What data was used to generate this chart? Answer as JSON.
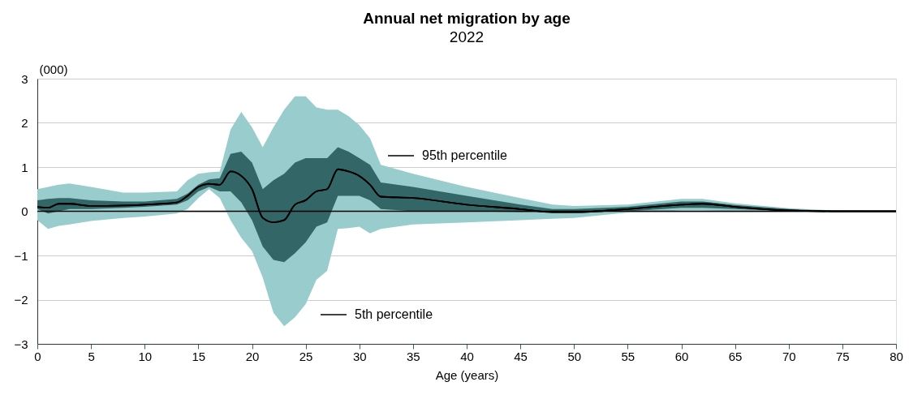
{
  "chart_data": {
    "type": "line",
    "title": "Annual net migration by age",
    "subtitle": "2022",
    "xlabel": "Age (years)",
    "ylabel": "(000)",
    "x": [
      0,
      1,
      2,
      3,
      5,
      8,
      10,
      13,
      14,
      15,
      16,
      17,
      18,
      19,
      20,
      21,
      22,
      23,
      24,
      25,
      26,
      27,
      28,
      29,
      30,
      31,
      32,
      35,
      40,
      45,
      48,
      50,
      55,
      60,
      62,
      65,
      70,
      74,
      80
    ],
    "series": [
      {
        "type": "line",
        "color": "#000000",
        "values": [
          0.1,
          0.08,
          0.17,
          0.17,
          0.12,
          0.13,
          0.15,
          0.2,
          0.35,
          0.55,
          0.62,
          0.6,
          0.9,
          0.8,
          0.5,
          -0.15,
          -0.25,
          -0.2,
          0.15,
          0.25,
          0.45,
          0.5,
          0.95,
          0.9,
          0.8,
          0.6,
          0.33,
          0.3,
          0.15,
          0.05,
          -0.02,
          -0.02,
          0.05,
          0.15,
          0.17,
          0.1,
          0.02,
          0,
          0
        ],
        "upper": [
          0.5,
          0.55,
          0.6,
          0.63,
          0.55,
          0.42,
          0.42,
          0.45,
          0.7,
          0.85,
          0.88,
          0.9,
          1.85,
          2.25,
          1.9,
          1.45,
          1.9,
          2.3,
          2.6,
          2.6,
          2.35,
          2.3,
          2.3,
          2.15,
          1.95,
          1.65,
          1.05,
          0.85,
          0.55,
          0.3,
          0.15,
          0.12,
          0.15,
          0.28,
          0.28,
          0.18,
          0.07,
          0.02,
          0
        ],
        "lower": [
          -0.2,
          -0.4,
          -0.33,
          -0.3,
          -0.22,
          -0.15,
          -0.12,
          -0.05,
          0.05,
          0.3,
          0.5,
          0.3,
          -0.2,
          -0.6,
          -0.9,
          -1.5,
          -2.3,
          -2.6,
          -2.4,
          -2.1,
          -1.55,
          -1.35,
          -0.4,
          -0.38,
          -0.35,
          -0.5,
          -0.4,
          -0.3,
          -0.25,
          -0.2,
          -0.17,
          -0.15,
          -0.03,
          0.02,
          0.02,
          0,
          0,
          0,
          0
        ]
      },
      {
        "type": "line",
        "color": "#000000",
        "values": [
          0.1,
          0.08,
          0.17,
          0.17,
          0.12,
          0.13,
          0.15,
          0.2,
          0.35,
          0.55,
          0.62,
          0.6,
          0.9,
          0.8,
          0.5,
          -0.15,
          -0.25,
          -0.2,
          0.15,
          0.25,
          0.45,
          0.5,
          0.95,
          0.9,
          0.8,
          0.6,
          0.33,
          0.3,
          0.15,
          0.05,
          -0.02,
          -0.02,
          0.05,
          0.15,
          0.17,
          0.1,
          0.02,
          0,
          0
        ],
        "upper": [
          0.25,
          0.28,
          0.3,
          0.3,
          0.25,
          0.22,
          0.22,
          0.28,
          0.4,
          0.6,
          0.72,
          0.75,
          1.3,
          1.35,
          1.1,
          0.5,
          0.7,
          0.85,
          1.1,
          1.2,
          1.2,
          1.2,
          1.45,
          1.35,
          1.2,
          1.05,
          0.65,
          0.55,
          0.35,
          0.15,
          0.05,
          0.05,
          0.1,
          0.22,
          0.22,
          0.14,
          0.05,
          0.01,
          0
        ],
        "lower": [
          0.05,
          -0.05,
          0,
          0.05,
          0.05,
          0.08,
          0.1,
          0.15,
          0.25,
          0.45,
          0.55,
          0.45,
          0.45,
          0.2,
          -0.2,
          -0.8,
          -1.1,
          -1.15,
          -0.95,
          -0.7,
          -0.35,
          -0.25,
          0.35,
          0.35,
          0.35,
          0.25,
          0.05,
          0,
          0,
          -0.02,
          -0.02,
          -0.02,
          0,
          0.08,
          0.08,
          0.05,
          0,
          0,
          0
        ]
      }
    ],
    "annotations": [
      "95th percentile",
      "5th percentile"
    ],
    "ref_lines": [
      {
        "axis": "y",
        "value": 0,
        "color": "#000000"
      }
    ],
    "xlim": [
      0,
      80
    ],
    "xticks": [
      0,
      5,
      10,
      15,
      20,
      25,
      30,
      35,
      40,
      45,
      50,
      55,
      60,
      65,
      70,
      75,
      80
    ],
    "ylim": [
      -3,
      3
    ],
    "yticks": [
      -3,
      -2,
      -1,
      0,
      1,
      2,
      3
    ],
    "grid": "y"
  }
}
